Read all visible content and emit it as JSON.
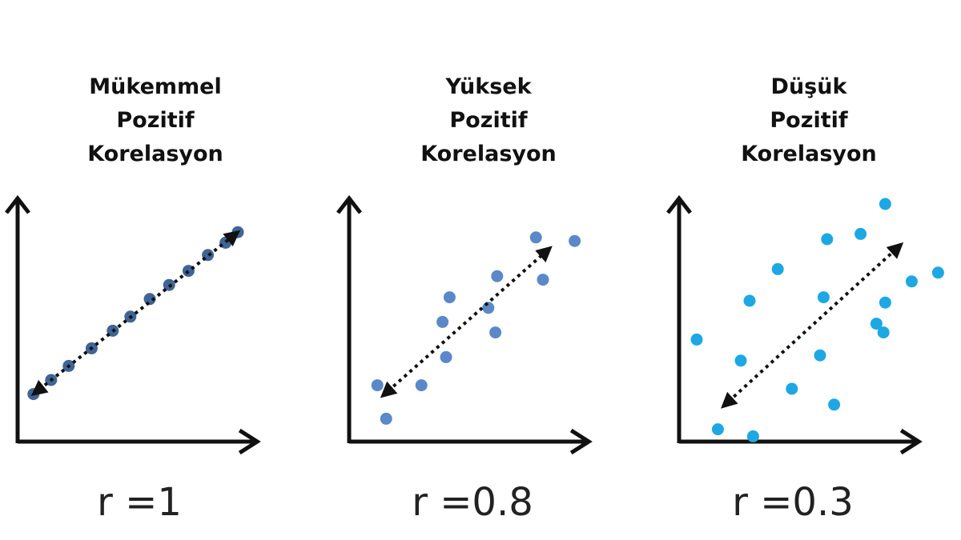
{
  "panels": [
    {
      "title_lines": [
        "Mükemmel",
        "Pozitif",
        "Korelasyon"
      ],
      "r_label": "r =1",
      "r": 1,
      "dot_color": "#3f6596",
      "points": [
        [
          0.9,
          2.7
        ],
        [
          1.9,
          3.5
        ],
        [
          2.9,
          4.3
        ],
        [
          4.2,
          5.3
        ],
        [
          5.4,
          6.3
        ],
        [
          6.4,
          7.1
        ],
        [
          7.5,
          8.1
        ],
        [
          8.6,
          8.9
        ],
        [
          9.7,
          9.7
        ],
        [
          10.8,
          10.6
        ],
        [
          11.8,
          11.3
        ],
        [
          12.5,
          11.9
        ]
      ],
      "trend": [
        [
          0.9,
          2.7
        ],
        [
          12.5,
          11.9
        ]
      ]
    },
    {
      "title_lines": [
        "Yüksek",
        "Pozitif",
        "Korelasyon"
      ],
      "r_label": "r =0.8",
      "r": 0.8,
      "dot_color": "#5b88c8",
      "points": [
        [
          1.6,
          3.2
        ],
        [
          2.1,
          1.3
        ],
        [
          4.1,
          3.2
        ],
        [
          5.5,
          4.8
        ],
        [
          5.3,
          6.8
        ],
        [
          5.7,
          8.2
        ],
        [
          7.9,
          7.6
        ],
        [
          8.3,
          6.2
        ],
        [
          8.4,
          9.4
        ],
        [
          10.6,
          11.6
        ],
        [
          11.0,
          9.2
        ],
        [
          12.8,
          11.4
        ]
      ],
      "trend": [
        [
          1.9,
          2.6
        ],
        [
          11.4,
          11.0
        ]
      ]
    },
    {
      "title_lines": [
        "Düşük",
        "Pozitif",
        "Korelasyon"
      ],
      "r_label": "r =0.3",
      "r": 0.3,
      "dot_color": "#1ea8e3",
      "points": [
        [
          1.0,
          5.8
        ],
        [
          2.2,
          0.7
        ],
        [
          3.5,
          4.6
        ],
        [
          4.0,
          8.0
        ],
        [
          4.2,
          0.3
        ],
        [
          5.6,
          9.8
        ],
        [
          6.4,
          3.0
        ],
        [
          8.0,
          4.9
        ],
        [
          8.2,
          8.2
        ],
        [
          8.4,
          11.5
        ],
        [
          8.8,
          2.1
        ],
        [
          10.3,
          11.8
        ],
        [
          11.2,
          6.7
        ],
        [
          11.6,
          6.2
        ],
        [
          11.7,
          7.9
        ],
        [
          11.7,
          13.5
        ],
        [
          13.2,
          9.1
        ],
        [
          14.7,
          9.6
        ]
      ],
      "trend": [
        [
          2.5,
          2.0
        ],
        [
          12.6,
          11.2
        ]
      ]
    }
  ]
}
